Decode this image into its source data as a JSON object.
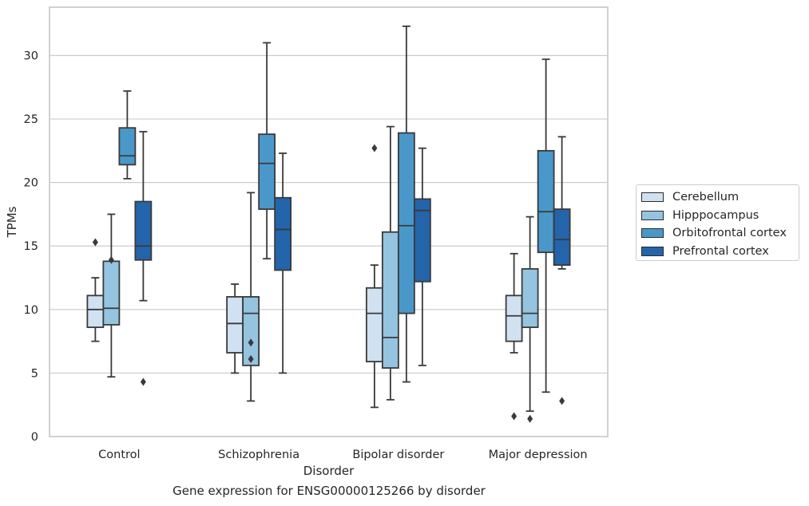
{
  "chart_data": {
    "type": "box",
    "ylabel": "TPMs",
    "xlabel": "Disorder",
    "ylim": [
      0,
      33.8
    ],
    "yticks": [
      0,
      5,
      10,
      15,
      20,
      25,
      30
    ],
    "grid": "horizontal",
    "legend_position": "right",
    "categories": [
      "Control",
      "Schizophrenia",
      "Bipolar disorder",
      "Major depression"
    ],
    "series": [
      {
        "name": "Cerebellum",
        "color": "#d0e1f2",
        "boxes": [
          {
            "whisker_low": 7.5,
            "q1": 8.6,
            "median": 10.0,
            "q3": 11.1,
            "whisker_high": 12.5,
            "outliers": [
              15.3
            ]
          },
          {
            "whisker_low": 5.0,
            "q1": 6.6,
            "median": 8.9,
            "q3": 11.0,
            "whisker_high": 12.0,
            "outliers": []
          },
          {
            "whisker_low": 2.3,
            "q1": 5.9,
            "median": 9.7,
            "q3": 11.7,
            "whisker_high": 13.5,
            "outliers": [
              22.7
            ]
          },
          {
            "whisker_low": 6.6,
            "q1": 7.5,
            "median": 9.5,
            "q3": 11.1,
            "whisker_high": 14.4,
            "outliers": [
              1.6
            ]
          }
        ]
      },
      {
        "name": "Hipppocampus",
        "color": "#94c4df",
        "boxes": [
          {
            "whisker_low": 4.7,
            "q1": 8.8,
            "median": 10.1,
            "q3": 13.8,
            "whisker_high": 17.5,
            "outliers": [
              13.9
            ]
          },
          {
            "whisker_low": 2.8,
            "q1": 5.6,
            "median": 9.7,
            "q3": 11.0,
            "whisker_high": 19.2,
            "outliers": [
              7.4,
              6.1
            ]
          },
          {
            "whisker_low": 2.9,
            "q1": 5.4,
            "median": 7.8,
            "q3": 16.1,
            "whisker_high": 24.4,
            "outliers": []
          },
          {
            "whisker_low": 2.0,
            "q1": 8.6,
            "median": 9.7,
            "q3": 13.2,
            "whisker_high": 17.3,
            "outliers": [
              1.4
            ]
          }
        ]
      },
      {
        "name": "Orbitofrontal cortex",
        "color": "#4a98c9",
        "boxes": [
          {
            "whisker_low": 20.3,
            "q1": 21.4,
            "median": 22.1,
            "q3": 24.3,
            "whisker_high": 27.2,
            "outliers": []
          },
          {
            "whisker_low": 14.0,
            "q1": 17.9,
            "median": 21.5,
            "q3": 23.8,
            "whisker_high": 31.0,
            "outliers": []
          },
          {
            "whisker_low": 4.3,
            "q1": 9.7,
            "median": 16.6,
            "q3": 23.9,
            "whisker_high": 32.3,
            "outliers": []
          },
          {
            "whisker_low": 3.5,
            "q1": 14.5,
            "median": 17.7,
            "q3": 22.5,
            "whisker_high": 29.7,
            "outliers": []
          }
        ]
      },
      {
        "name": "Prefrontal cortex",
        "color": "#2464ab",
        "boxes": [
          {
            "whisker_low": 10.7,
            "q1": 13.9,
            "median": 15.0,
            "q3": 18.5,
            "whisker_high": 24.0,
            "outliers": [
              4.3
            ]
          },
          {
            "whisker_low": 5.0,
            "q1": 13.1,
            "median": 16.3,
            "q3": 18.8,
            "whisker_high": 22.3,
            "outliers": []
          },
          {
            "whisker_low": 5.6,
            "q1": 12.2,
            "median": 17.8,
            "q3": 18.7,
            "whisker_high": 22.7,
            "outliers": []
          },
          {
            "whisker_low": 13.2,
            "q1": 13.5,
            "median": 15.5,
            "q3": 17.9,
            "whisker_high": 23.6,
            "outliers": [
              2.8
            ]
          }
        ]
      }
    ]
  },
  "caption": "Gene expression for ENSG00000125266 by disorder"
}
